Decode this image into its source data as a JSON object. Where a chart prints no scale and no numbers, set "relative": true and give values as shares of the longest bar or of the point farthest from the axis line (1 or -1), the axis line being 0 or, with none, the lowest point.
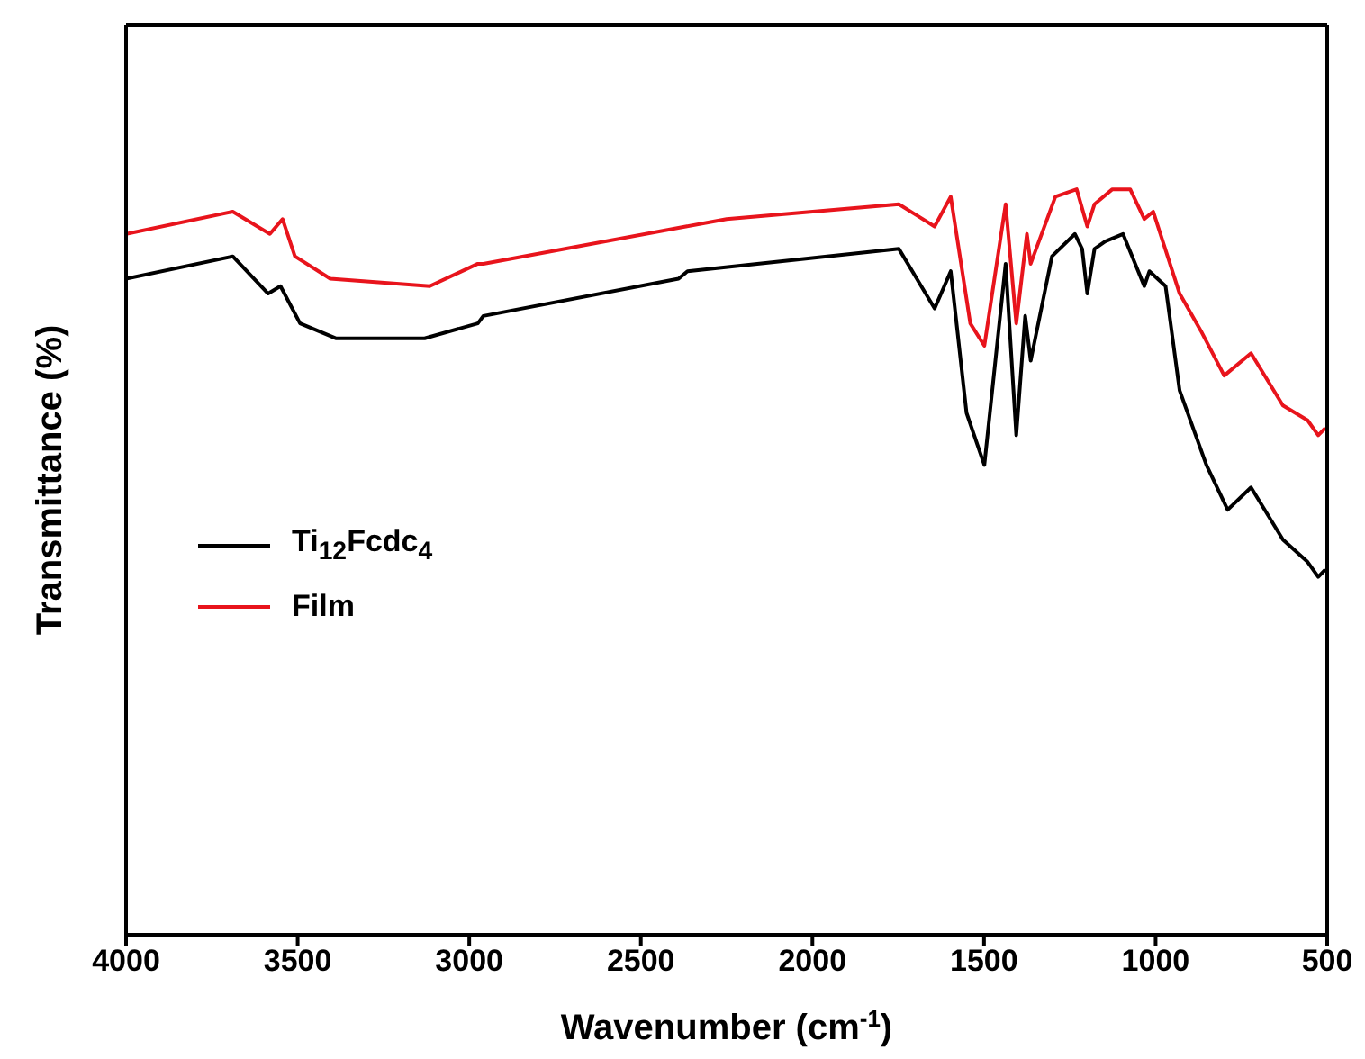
{
  "chart_data": {
    "type": "line",
    "xlabel": "Wavenumber (cm$^{-1}$)",
    "ylabel": "Transmittance (%)",
    "relative": true,
    "xlim": [
      4000,
      500
    ],
    "xticks": [
      4000,
      3500,
      3000,
      2500,
      2000,
      1500,
      1000,
      500
    ],
    "legend": "left",
    "marker": "none",
    "line_style": "solid",
    "series": [
      {
        "name": "Ti$_{12}$Fcdc$_{4}$",
        "color": "#000000",
        "x": [
          4000,
          3689,
          3586,
          3550,
          3493,
          3389,
          3130,
          2975,
          2959,
          2390,
          2364,
          1748,
          1644,
          1597,
          1551,
          1499,
          1437,
          1406,
          1380,
          1364,
          1302,
          1235,
          1214,
          1199,
          1178,
          1147,
          1095,
          1033,
          1018,
          971,
          930,
          852,
          790,
          722,
          629,
          557,
          526,
          505
        ],
        "values": [
          0.88,
          0.91,
          0.86,
          0.87,
          0.82,
          0.8,
          0.8,
          0.82,
          0.83,
          0.88,
          0.89,
          0.92,
          0.84,
          0.89,
          0.7,
          0.63,
          0.9,
          0.67,
          0.83,
          0.77,
          0.91,
          0.94,
          0.92,
          0.86,
          0.92,
          0.93,
          0.94,
          0.87,
          0.89,
          0.87,
          0.73,
          0.63,
          0.57,
          0.6,
          0.53,
          0.5,
          0.48,
          0.49
        ]
      },
      {
        "name": "Film",
        "color": "#e8141c",
        "x": [
          4000,
          3689,
          3581,
          3544,
          3508,
          3405,
          3115,
          2975,
          2959,
          2369,
          2250,
          1748,
          1644,
          1597,
          1540,
          1499,
          1437,
          1406,
          1375,
          1364,
          1292,
          1230,
          1199,
          1178,
          1126,
          1074,
          1033,
          1007,
          930,
          868,
          800,
          722,
          629,
          557,
          526,
          505
        ],
        "values": [
          0.94,
          0.97,
          0.94,
          0.96,
          0.91,
          0.88,
          0.87,
          0.9,
          0.9,
          0.95,
          0.96,
          0.98,
          0.95,
          0.99,
          0.82,
          0.79,
          0.98,
          0.82,
          0.94,
          0.9,
          0.99,
          1.0,
          0.95,
          0.98,
          1.0,
          1.0,
          0.96,
          0.97,
          0.86,
          0.81,
          0.75,
          0.78,
          0.71,
          0.69,
          0.67,
          0.68
        ]
      }
    ]
  }
}
